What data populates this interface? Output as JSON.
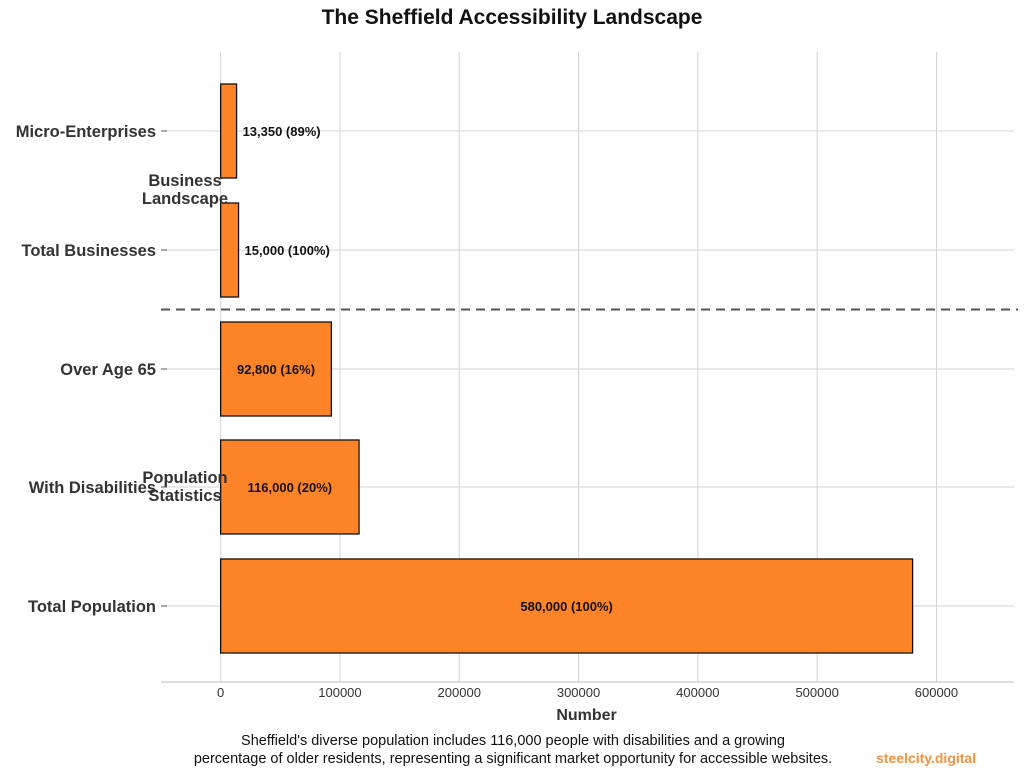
{
  "chart_data": {
    "type": "bar",
    "orientation": "horizontal",
    "title": "The Sheffield Accessibility Landscape",
    "xlabel": "Number",
    "ylabel": "",
    "xlim": [
      -50000,
      665000
    ],
    "xticks": [
      0,
      100000,
      200000,
      300000,
      400000,
      500000,
      600000
    ],
    "xtick_labels": [
      "0",
      "100000",
      "200000",
      "300000",
      "400000",
      "500000",
      "600000"
    ],
    "grid": true,
    "bar_color": "#ff8427",
    "bar_edge_color": "#111111",
    "categories": [
      "Micro-Enterprises",
      "Total Businesses",
      "Over Age 65",
      "With Disabilities",
      "Total Population"
    ],
    "values": [
      13350,
      15000,
      92800,
      116000,
      580000
    ],
    "data_labels": [
      "13,350 (89%)",
      "15,000 (100%)",
      "92,800 (16%)",
      "116,000 (20%)",
      "580,000 (100%)"
    ],
    "groups": [
      {
        "name_lines": [
          "Business",
          "Landscape"
        ],
        "categories": [
          "Micro-Enterprises",
          "Total Businesses"
        ]
      },
      {
        "name_lines": [
          "Population",
          "Statistics"
        ],
        "categories": [
          "Over Age 65",
          "With Disabilities",
          "Total Population"
        ]
      }
    ],
    "separator": "dashed line between groups"
  },
  "caption_lines": [
    "Sheffield's diverse population includes 116,000 people with disabilities and a growing",
    "percentage of older residents, representing a significant market opportunity for accessible websites."
  ],
  "brand": "steelcity.digital"
}
